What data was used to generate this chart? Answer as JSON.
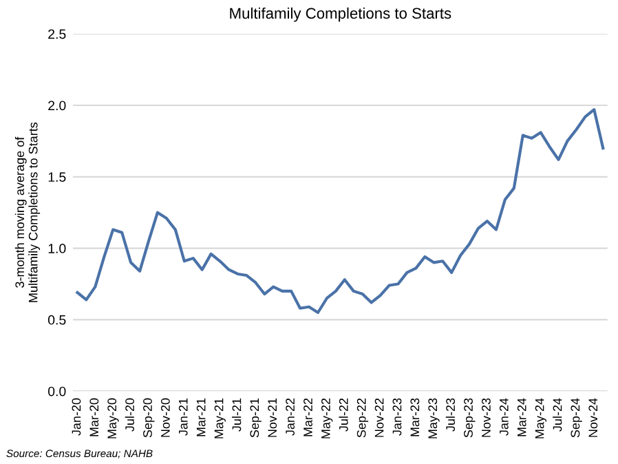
{
  "chart_data": {
    "type": "line",
    "title": "Multifamily Completions to Starts",
    "ylabel": "3-month moving average of\nMultifamily Completions to Starts",
    "categories": [
      "Jan-20",
      null,
      "Mar-20",
      null,
      "May-20",
      null,
      "Jul-20",
      null,
      "Sep-20",
      null,
      "Nov-20",
      null,
      "Jan-21",
      null,
      "Mar-21",
      null,
      "May-21",
      null,
      "Jul-21",
      null,
      "Sep-21",
      null,
      "Nov-21",
      null,
      "Jan-22",
      null,
      "Mar-22",
      null,
      "May-22",
      null,
      "Jul-22",
      null,
      "Sep-22",
      null,
      "Nov-22",
      null,
      "Jan-23",
      null,
      "Mar-23",
      null,
      "May-23",
      null,
      "Jul-23",
      null,
      "Sep-23",
      null,
      "Nov-23",
      null,
      "Jan-24",
      null,
      "Mar-24",
      null,
      "May-24",
      null,
      "Jul-24",
      null,
      "Sep-24",
      null,
      "Nov-24",
      null
    ],
    "series": [
      {
        "color": "#4a72a8",
        "values": [
          0.69,
          0.64,
          0.73,
          0.94,
          1.13,
          1.11,
          0.9,
          0.84,
          1.05,
          1.25,
          1.21,
          1.13,
          0.91,
          0.93,
          0.85,
          0.96,
          0.91,
          0.85,
          0.82,
          0.81,
          0.76,
          0.68,
          0.73,
          0.7,
          0.7,
          0.58,
          0.59,
          0.55,
          0.65,
          0.7,
          0.78,
          0.7,
          0.68,
          0.62,
          0.67,
          0.74,
          0.75,
          0.83,
          0.86,
          0.94,
          0.9,
          0.91,
          0.83,
          0.95,
          1.03,
          1.14,
          1.19,
          1.13,
          1.34,
          1.42,
          1.79,
          1.77,
          1.81,
          1.71,
          1.62,
          1.75,
          1.83,
          1.92,
          1.97,
          1.7
        ]
      }
    ],
    "ylim": [
      0,
      2.5
    ],
    "yticks": [
      {
        "value": 0,
        "label": "0.0"
      },
      {
        "value": 0.5,
        "label": "0.5"
      },
      {
        "value": 1,
        "label": "1.0"
      },
      {
        "value": 1.5,
        "label": "1.5"
      },
      {
        "value": 2,
        "label": "2.0"
      },
      {
        "value": 2.5,
        "label": "2.5"
      }
    ],
    "grid": "y",
    "legend": false,
    "annotations": [
      "Source: Census Bureau; NAHB"
    ]
  }
}
